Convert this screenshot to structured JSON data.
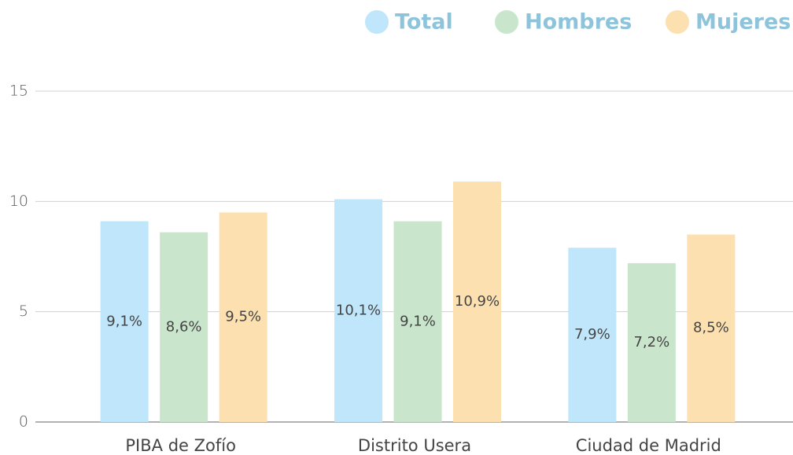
{
  "chart_data": {
    "type": "bar",
    "categories": [
      "PIBA de Zofío",
      "Distrito Usera",
      "Ciudad de Madrid"
    ],
    "series": [
      {
        "name": "Total",
        "color": "#bfe6fa",
        "values": [
          9.1,
          10.1,
          7.9
        ],
        "value_labels": [
          "9,1%",
          "10,1%",
          "7,9%"
        ]
      },
      {
        "name": "Hombres",
        "color": "#c9e6cc",
        "values": [
          8.6,
          9.1,
          7.2
        ],
        "value_labels": [
          "8,6%",
          "9,1%",
          "7,2%"
        ]
      },
      {
        "name": "Mujeres",
        "color": "#fde0b0",
        "values": [
          9.5,
          10.9,
          8.5
        ],
        "value_labels": [
          "9,5%",
          "10,9%",
          "8,5%"
        ]
      }
    ],
    "ylim": [
      0,
      15
    ],
    "yticks": [
      0,
      5,
      10,
      15
    ],
    "grid": true,
    "legend": "top-right"
  }
}
